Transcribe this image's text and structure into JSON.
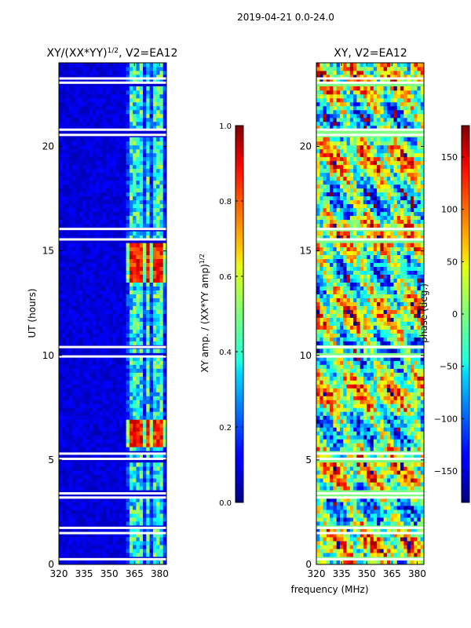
{
  "figure": {
    "suptitle": "2019-04-21 0.0-24.0",
    "xlabel": "frequency (MHz)",
    "colormap": "jet"
  },
  "chart_data": [
    {
      "type": "heatmap",
      "title_main": "XY/(XX*YY)",
      "title_sup": "1/2",
      "title_rest": ", V2=EA12",
      "xlabel": "",
      "ylabel": "UT (hours)",
      "xlim": [
        320,
        384
      ],
      "ylim": [
        0,
        24
      ],
      "xticks": [
        320,
        335,
        350,
        365,
        380
      ],
      "yticks": [
        0,
        5,
        10,
        15,
        20
      ],
      "colorbar": {
        "label_main": "XY amp. / (XX*YY amp)",
        "label_sup": "1/2",
        "range": [
          0.0,
          1.0
        ],
        "ticks": [
          "0.0",
          "0.2",
          "0.4",
          "0.6",
          "0.8",
          "1.0"
        ]
      },
      "signal_channels_mhz": [
        362.5,
        366,
        369.5,
        373,
        376.5,
        380
      ],
      "flagged_hours": [
        0.25,
        1.5,
        1.75,
        3.2,
        3.4,
        5.05,
        5.3,
        9.95,
        10.4,
        15.55,
        16.05,
        20.55,
        20.8,
        23.05,
        23.25
      ]
    },
    {
      "type": "heatmap",
      "title": "XY, V2=EA12",
      "xlabel": "",
      "ylabel": "",
      "xlim": [
        320,
        384
      ],
      "ylim": [
        0,
        24
      ],
      "xticks": [
        320,
        335,
        350,
        365,
        380
      ],
      "yticks": [
        0,
        5,
        10,
        15,
        20
      ],
      "colorbar": {
        "label": "phase (deg.)",
        "range": [
          -180,
          180
        ],
        "ticks": [
          "150",
          "100",
          "50",
          "0",
          "−50",
          "−100",
          "−150"
        ],
        "tick_values": [
          150,
          100,
          50,
          0,
          -50,
          -100,
          -150
        ]
      },
      "flagged_hours": [
        0.25,
        1.5,
        1.75,
        3.2,
        3.4,
        5.05,
        5.3,
        9.95,
        10.4,
        15.55,
        16.05,
        20.55,
        20.8,
        23.05,
        23.25
      ]
    }
  ]
}
